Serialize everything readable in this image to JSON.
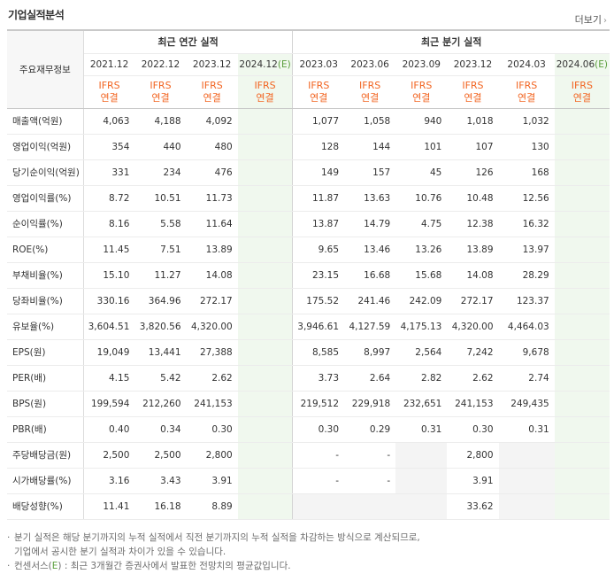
{
  "header": {
    "title": "기업실적분석",
    "more_label": "더보기",
    "row_label_head": "주요재무정보",
    "annual_group": "최근 연간 실적",
    "quarter_group": "최근 분기 실적",
    "ifrs_top": "IFRS",
    "ifrs_bottom": "연결"
  },
  "periods": {
    "annual": [
      "2021.12",
      "2022.12",
      "2023.12",
      "2024.12(E)"
    ],
    "quarter": [
      "2023.03",
      "2023.06",
      "2023.09",
      "2023.12",
      "2024.03",
      "2024.06(E)"
    ]
  },
  "rows": [
    {
      "label": "매출액(억원)",
      "annual": [
        "4,063",
        "4,188",
        "4,092",
        ""
      ],
      "quarter": [
        "1,077",
        "1,058",
        "940",
        "1,018",
        "1,032",
        ""
      ]
    },
    {
      "label": "영업이익(억원)",
      "annual": [
        "354",
        "440",
        "480",
        ""
      ],
      "quarter": [
        "128",
        "144",
        "101",
        "107",
        "130",
        ""
      ]
    },
    {
      "label": "당기순이익(억원)",
      "annual": [
        "331",
        "234",
        "476",
        ""
      ],
      "quarter": [
        "149",
        "157",
        "45",
        "126",
        "168",
        ""
      ]
    },
    {
      "label": "영업이익률(%)",
      "annual": [
        "8.72",
        "10.51",
        "11.73",
        ""
      ],
      "quarter": [
        "11.87",
        "13.63",
        "10.76",
        "10.48",
        "12.56",
        ""
      ]
    },
    {
      "label": "순이익률(%)",
      "annual": [
        "8.16",
        "5.58",
        "11.64",
        ""
      ],
      "quarter": [
        "13.87",
        "14.79",
        "4.75",
        "12.38",
        "16.32",
        ""
      ]
    },
    {
      "label": "ROE(%)",
      "annual": [
        "11.45",
        "7.51",
        "13.89",
        ""
      ],
      "quarter": [
        "9.65",
        "13.46",
        "13.26",
        "13.89",
        "13.97",
        ""
      ]
    },
    {
      "label": "부채비율(%)",
      "annual": [
        "15.10",
        "11.27",
        "14.08",
        ""
      ],
      "quarter": [
        "23.15",
        "16.68",
        "15.68",
        "14.08",
        "28.29",
        ""
      ]
    },
    {
      "label": "당좌비율(%)",
      "annual": [
        "330.16",
        "364.96",
        "272.17",
        ""
      ],
      "quarter": [
        "175.52",
        "241.46",
        "242.09",
        "272.17",
        "123.37",
        ""
      ]
    },
    {
      "label": "유보율(%)",
      "annual": [
        "3,604.51",
        "3,820.56",
        "4,320.00",
        ""
      ],
      "quarter": [
        "3,946.61",
        "4,127.59",
        "4,175.13",
        "4,320.00",
        "4,464.03",
        ""
      ]
    },
    {
      "label": "EPS(원)",
      "annual": [
        "19,049",
        "13,441",
        "27,388",
        ""
      ],
      "quarter": [
        "8,585",
        "8,997",
        "2,564",
        "7,242",
        "9,678",
        ""
      ]
    },
    {
      "label": "PER(배)",
      "annual": [
        "4.15",
        "5.42",
        "2.62",
        ""
      ],
      "quarter": [
        "3.73",
        "2.64",
        "2.82",
        "2.62",
        "2.74",
        ""
      ]
    },
    {
      "label": "BPS(원)",
      "annual": [
        "199,594",
        "212,260",
        "241,153",
        ""
      ],
      "quarter": [
        "219,512",
        "229,918",
        "232,651",
        "241,153",
        "249,435",
        ""
      ]
    },
    {
      "label": "PBR(배)",
      "annual": [
        "0.40",
        "0.34",
        "0.30",
        ""
      ],
      "quarter": [
        "0.30",
        "0.29",
        "0.31",
        "0.30",
        "0.31",
        ""
      ]
    },
    {
      "label": "주당배당금(원)",
      "annual": [
        "2,500",
        "2,500",
        "2,800",
        ""
      ],
      "quarter": [
        "-",
        "-",
        "",
        "2,800",
        "",
        ""
      ]
    },
    {
      "label": "시가배당률(%)",
      "annual": [
        "3.16",
        "3.43",
        "3.91",
        ""
      ],
      "quarter": [
        "-",
        "-",
        "",
        "3.91",
        "",
        ""
      ]
    },
    {
      "label": "배당성향(%)",
      "annual": [
        "11.41",
        "16.18",
        "8.89",
        ""
      ],
      "quarter": [
        "",
        "",
        "",
        "33.62",
        "",
        ""
      ]
    }
  ],
  "notes": [
    "분기 실적은 해당 분기까지의 누적 실적에서 직전 분기까지의 누적 실적을 차감하는 방식으로 계산되므로,",
    "기업에서 공시한 분기 실적과 차이가 있을 수 있습니다.",
    "컨센서스(",
    "E",
    ") : 최근 3개월간 증권사에서 발표한 전망치의 평균값입니다."
  ]
}
